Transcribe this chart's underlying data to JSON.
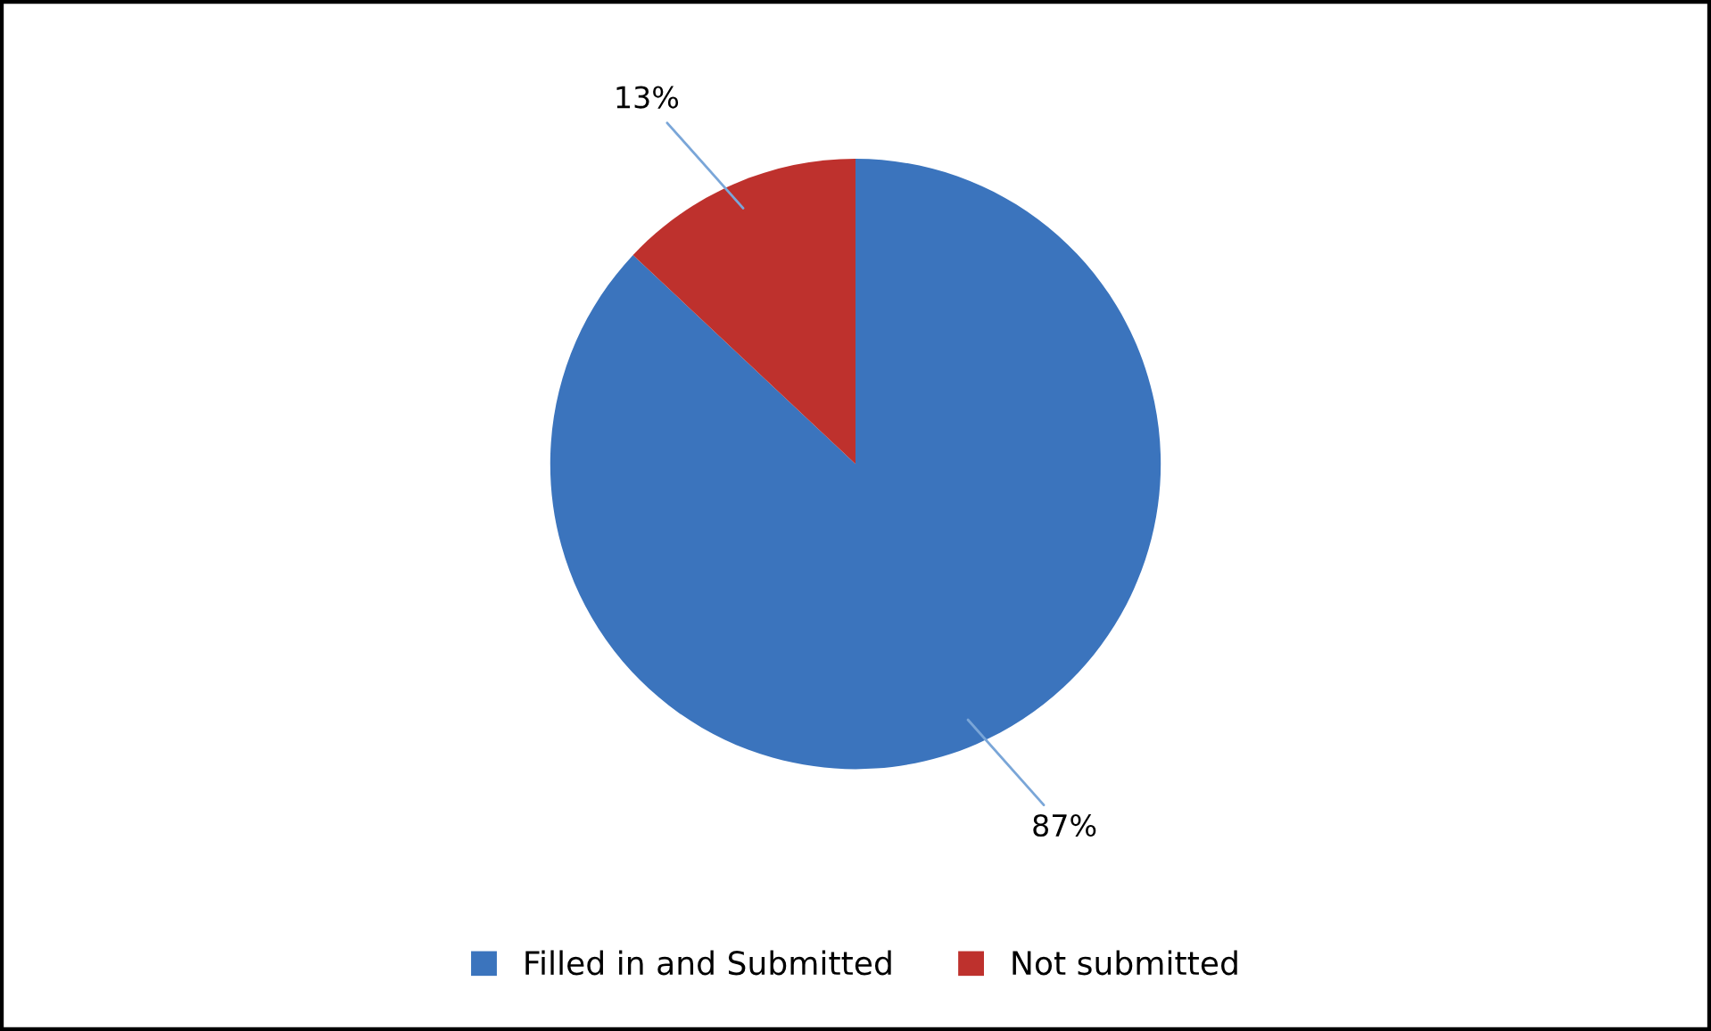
{
  "chart_data": {
    "type": "pie",
    "categories": [
      "Filled in and Submitted",
      "Not submitted"
    ],
    "values": [
      87,
      13
    ],
    "colors": [
      "#3b74bd",
      "#be312d"
    ],
    "value_labels": [
      "87%",
      "13%"
    ],
    "legend": "bottom"
  }
}
